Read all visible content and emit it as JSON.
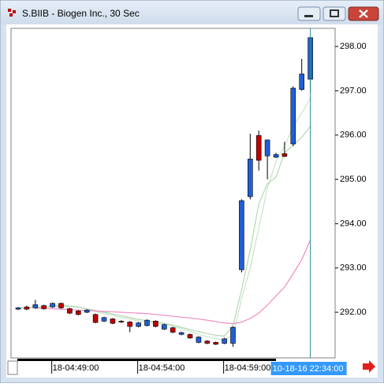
{
  "chart_data": {
    "type": "candlestick",
    "title": "S.BIIB - Biogen Inc., 30 Sec",
    "open": [
      292.07,
      292.12,
      292.1,
      292.15,
      292.12,
      292.2,
      292.08,
      292.03,
      292.0,
      291.95,
      291.8,
      291.85,
      291.8,
      291.78,
      291.68,
      291.7,
      291.8,
      291.62,
      291.65,
      291.5,
      291.5,
      291.32,
      291.35,
      291.32,
      291.3,
      291.3,
      292.96,
      294.61,
      295.99,
      295.53,
      295.5,
      295.58,
      295.8,
      297.03,
      297.26
    ],
    "high": [
      292.12,
      292.15,
      292.28,
      292.17,
      292.22,
      292.22,
      292.1,
      292.05,
      292.07,
      291.97,
      291.9,
      291.87,
      291.82,
      291.8,
      291.78,
      291.84,
      291.82,
      291.74,
      291.67,
      291.56,
      291.52,
      291.46,
      291.37,
      291.34,
      291.42,
      291.68,
      294.55,
      296.03,
      296.1,
      295.9,
      295.6,
      295.85,
      297.1,
      297.72,
      298.2
    ],
    "low": [
      292.05,
      292.05,
      292.08,
      292.06,
      292.1,
      292.08,
      291.96,
      291.93,
      291.98,
      291.75,
      291.78,
      291.73,
      291.76,
      291.55,
      291.66,
      291.68,
      291.66,
      291.6,
      291.53,
      291.48,
      291.4,
      291.3,
      291.28,
      291.26,
      291.28,
      291.22,
      292.9,
      294.55,
      295.2,
      295.0,
      295.48,
      295.5,
      295.75,
      297.0,
      296.98
    ],
    "close": [
      292.1,
      292.07,
      292.17,
      292.08,
      292.2,
      292.1,
      291.98,
      291.95,
      292.05,
      291.77,
      291.88,
      291.75,
      291.78,
      291.68,
      291.76,
      291.82,
      291.68,
      291.72,
      291.55,
      291.54,
      291.42,
      291.44,
      291.3,
      291.28,
      291.4,
      291.66,
      294.52,
      295.46,
      295.43,
      295.89,
      295.56,
      295.52,
      297.06,
      297.38,
      298.2
    ],
    "up_color": "#1f5fd6",
    "down_color": "#c00000",
    "series": [
      {
        "color": "#c8e6c8",
        "values": [
          292.09,
          292.09,
          292.11,
          292.12,
          292.14,
          292.16,
          292.15,
          292.12,
          292.08,
          292.02,
          291.97,
          291.93,
          291.88,
          291.85,
          291.8,
          291.78,
          291.76,
          291.74,
          291.68,
          291.63,
          291.57,
          291.5,
          291.45,
          291.4,
          291.38,
          291.48,
          292.3,
          293.0,
          293.9,
          294.8,
          295.4,
          295.75,
          296.2,
          296.5,
          296.83
        ]
      },
      {
        "color": "#b4d8b4",
        "values": [
          292.1,
          292.1,
          292.11,
          292.12,
          292.13,
          292.14,
          292.13,
          292.11,
          292.08,
          292.04,
          292.0,
          291.96,
          291.92,
          291.88,
          291.84,
          291.81,
          291.78,
          291.75,
          291.71,
          291.66,
          291.61,
          291.56,
          291.52,
          291.48,
          291.46,
          291.7,
          292.5,
          293.4,
          294.45,
          294.9,
          295.05,
          295.6,
          295.77,
          295.95,
          296.2
        ]
      },
      {
        "color": "#f08cc0",
        "values": [
          null,
          null,
          292.09,
          292.09,
          292.08,
          292.07,
          292.06,
          292.05,
          292.04,
          292.03,
          292.02,
          292.01,
          292.0,
          291.99,
          291.98,
          291.97,
          291.95,
          291.93,
          291.91,
          291.89,
          291.87,
          291.85,
          291.82,
          291.79,
          291.76,
          291.74,
          291.78,
          291.86,
          291.98,
          292.16,
          292.37,
          292.57,
          292.87,
          293.19,
          293.63
        ]
      }
    ],
    "ylim": [
      290.97,
      298.41
    ],
    "yticks": [
      {
        "value": 292,
        "label": "292.00"
      },
      {
        "value": 293,
        "label": "293.00"
      },
      {
        "value": 294,
        "label": "294.00"
      },
      {
        "value": 295,
        "label": "295.00"
      },
      {
        "value": 296,
        "label": "296.00"
      },
      {
        "value": 297,
        "label": "297.00"
      },
      {
        "value": 298,
        "label": "298.00"
      }
    ],
    "xticks": [
      {
        "value": 4,
        "label": "18-04:49:00"
      },
      {
        "value": 14,
        "label": "18-04:54:00"
      },
      {
        "value": 24,
        "label": "18-04:59:00"
      }
    ],
    "crosshair_label": "10-18-16 22:34:00",
    "crosshair_color": "#2a8a9a"
  }
}
